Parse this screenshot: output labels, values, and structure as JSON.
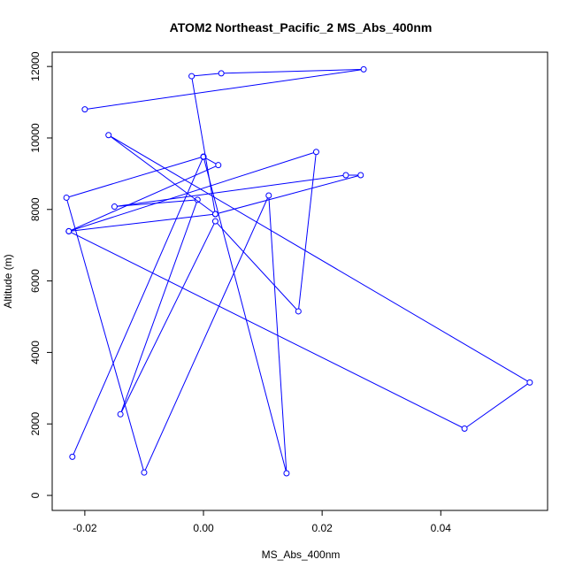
{
  "chart_data": {
    "type": "line",
    "title": "ATOM2 Northeast_Pacific_2 MS_Abs_400nm",
    "xlabel": "MS_Abs_400nm",
    "ylabel": "Altitude (m)",
    "xlim": [
      -0.0255,
      0.058
    ],
    "ylim": [
      -420,
      12400
    ],
    "xticks": [
      -0.02,
      0.0,
      0.02,
      0.04
    ],
    "xtick_labels": [
      "-0.02",
      "0.00",
      "0.02",
      "0.04"
    ],
    "yticks": [
      0,
      2000,
      4000,
      6000,
      8000,
      10000,
      12000
    ],
    "ytick_labels": [
      "0",
      "2000",
      "4000",
      "6000",
      "8000",
      "10000",
      "12000"
    ],
    "grid": false,
    "color": "#0000ff",
    "markers": "open-circle",
    "series": [
      {
        "x": [
          -0.0221,
          0.0,
          -0.0231,
          -0.01,
          0.011,
          0.014,
          0.0,
          0.0025,
          -0.0227,
          0.019,
          0.016,
          0.002,
          -0.014,
          -0.001,
          -0.015,
          0.024,
          0.0265,
          0.002,
          -0.0227,
          0.044,
          0.055,
          -0.016,
          0.002,
          -0.002,
          0.003,
          0.027,
          -0.02
        ],
        "y": [
          1080,
          9480,
          8330,
          640,
          8390,
          620,
          9470,
          9240,
          7390,
          9610,
          5150,
          7670,
          2270,
          8270,
          8080,
          8960,
          8960,
          7870,
          7390,
          1870,
          3160,
          10080,
          7870,
          11730,
          11810,
          11920,
          10800
        ]
      }
    ]
  }
}
